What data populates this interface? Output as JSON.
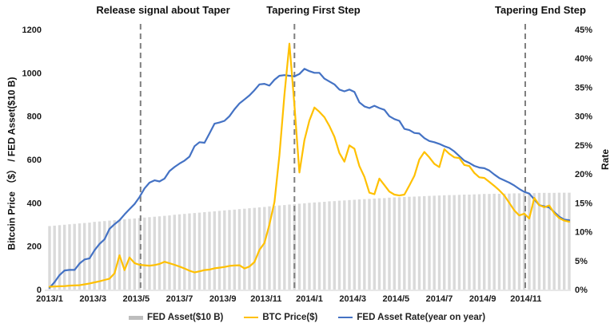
{
  "annotations": [
    {
      "label": "Release signal about Taper",
      "week": 18.2
    },
    {
      "label": "Tapering First Step",
      "week": 49
    },
    {
      "label": "Tapering End Step",
      "week": 95.2
    }
  ],
  "axis_titles": {
    "left": "Bitcoin Price （$） / FED Asset($10 B)",
    "right": "Rate"
  },
  "legend": {
    "fed_asset": "FED Asset($10 B)",
    "btc_price": "BTC Price($)",
    "fed_rate": "FED Asset Rate(year on year)"
  },
  "chart_data": {
    "type": "combo-bar-line",
    "x_unit": "weeks from 2013/1 to 2014/12",
    "x_axis": {
      "tick_labels": [
        "2013/1",
        "2013/3",
        "2013/5",
        "2013/7",
        "2013/9",
        "2013/11",
        "2014/1",
        "2014/3",
        "2014/5",
        "2014/7",
        "2014/9",
        "2014/11"
      ]
    },
    "left_axis": {
      "title": "Bitcoin Price （$） / FED Asset($10 B)",
      "range": [
        0,
        1200
      ],
      "ticks": [
        0,
        200,
        400,
        600,
        800,
        1000,
        1200
      ]
    },
    "right_axis": {
      "title": "Rate",
      "range": [
        0,
        45
      ],
      "tick_labels": [
        "0%",
        "5%",
        "10%",
        "15%",
        "20%",
        "25%",
        "30%",
        "35%",
        "40%",
        "45%"
      ],
      "tick_values": [
        0,
        5,
        10,
        15,
        20,
        25,
        30,
        35,
        40,
        45
      ]
    },
    "grid": false,
    "legend_position": "bottom",
    "dashed_line_color": "#7f7f7f",
    "series": [
      {
        "name": "FED Asset($10 B)",
        "type": "bar",
        "axis": "left",
        "color": "#dadada",
        "values": [
          293,
          295,
          297,
          299,
          301,
          303,
          305,
          307,
          309,
          312,
          314,
          316,
          318,
          320,
          322,
          324,
          326,
          328,
          330,
          332,
          334,
          336,
          338,
          340,
          342,
          345,
          347,
          349,
          351,
          353,
          355,
          357,
          359,
          361,
          363,
          365,
          367,
          369,
          371,
          373,
          375,
          377,
          379,
          381,
          384,
          386,
          388,
          390,
          392,
          394,
          396,
          398,
          400,
          402,
          403,
          405,
          407,
          408,
          410,
          411,
          413,
          414,
          416,
          417,
          418,
          420,
          421,
          422,
          424,
          425,
          426,
          427,
          428,
          429,
          430,
          431,
          432,
          433,
          434,
          435,
          436,
          436,
          437,
          438,
          438,
          439,
          440,
          441,
          441,
          442,
          442,
          443,
          443,
          444,
          444,
          445,
          445,
          445,
          446,
          446,
          446,
          446,
          447,
          447,
          447
        ]
      },
      {
        "name": "BTC Price($)",
        "type": "line",
        "axis": "left",
        "color": "#FFC000",
        "values": [
          13,
          14,
          15,
          16,
          18,
          19,
          20,
          24,
          28,
          33,
          38,
          44,
          50,
          75,
          158,
          90,
          148,
          122,
          114,
          112,
          110,
          113,
          118,
          128,
          121,
          114,
          106,
          97,
          87,
          79,
          84,
          90,
          92,
          98,
          101,
          104,
          109,
          111,
          112,
          97,
          106,
          127,
          183,
          215,
          300,
          404,
          620,
          900,
          1135,
          850,
          540,
          690,
          780,
          840,
          820,
          795,
          755,
          705,
          630,
          590,
          665,
          650,
          570,
          520,
          447,
          440,
          512,
          482,
          452,
          438,
          434,
          438,
          480,
          525,
          600,
          635,
          610,
          580,
          565,
          648,
          626,
          610,
          607,
          575,
          570,
          538,
          518,
          515,
          497,
          478,
          458,
          434,
          400,
          365,
          342,
          350,
          328,
          423,
          390,
          380,
          388,
          352,
          330,
          318,
          313
        ]
      },
      {
        "name": "FED Asset Rate(year on year)",
        "type": "line",
        "axis": "right",
        "color": "#4472C4",
        "values": [
          0.3,
          1.3,
          2.5,
          3.3,
          3.4,
          3.4,
          4.5,
          5.2,
          5.4,
          6.8,
          7.9,
          8.7,
          10.5,
          11.3,
          12.0,
          13.0,
          13.9,
          14.8,
          16.0,
          17.5,
          18.5,
          18.9,
          18.7,
          19.2,
          20.5,
          21.2,
          21.8,
          22.3,
          23.0,
          24.8,
          25.5,
          25.4,
          27.0,
          28.7,
          28.9,
          29.2,
          30.0,
          31.2,
          32.2,
          32.9,
          33.6,
          34.5,
          35.5,
          35.6,
          35.3,
          36.3,
          37.0,
          37.1,
          37.0,
          36.9,
          37.3,
          38.2,
          37.8,
          37.5,
          37.5,
          36.5,
          36.0,
          35.5,
          34.6,
          34.3,
          34.6,
          34.2,
          32.4,
          31.7,
          31.4,
          31.8,
          31.4,
          31.1,
          30.0,
          29.5,
          29.2,
          27.8,
          27.6,
          27.1,
          27.0,
          26.2,
          25.7,
          25.5,
          25.2,
          24.8,
          24.5,
          23.9,
          23.1,
          22.3,
          21.9,
          21.4,
          21.1,
          21.0,
          20.6,
          19.9,
          19.3,
          18.9,
          18.5,
          18.0,
          17.4,
          16.9,
          16.6,
          15.6,
          14.6,
          14.4,
          14.2,
          13.4,
          12.6,
          12.1,
          12.0
        ]
      }
    ]
  }
}
